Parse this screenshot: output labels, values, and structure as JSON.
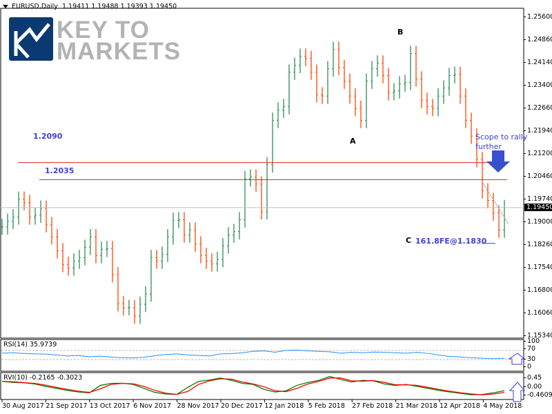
{
  "header": {
    "symbol": "EURUSD,Daily",
    "ohlc_text": "1.19411 1.19488 1.19393 1.19450"
  },
  "logo": {
    "line1": "KEY TO",
    "line2": "MARKETS",
    "color": "#0b3a72"
  },
  "colors": {
    "up": "#2e8b57",
    "down": "#ff4500",
    "level": "#dd2222",
    "annotation": "#4040d8",
    "rsi": "#1e90ff",
    "rvi_main": "#008000",
    "rvi_signal": "#ff0000"
  },
  "chart_data": [
    {
      "type": "bar",
      "title": "EURUSD,Daily",
      "ylim": [
        1.1534,
        1.256
      ],
      "y_ticks": [
        "1.25600",
        "1.24860",
        "1.24140",
        "1.23400",
        "1.22660",
        "1.21940",
        "1.21200",
        "1.20460",
        "1.19740",
        "1.19000",
        "1.18260",
        "1.17540",
        "1.16800",
        "1.16060",
        "1.15340"
      ],
      "x_ticks": [
        "30 Aug 2017",
        "21 Sep 2017",
        "13 Oct 2017",
        "6 Nov 2017",
        "28 Nov 2017",
        "20 Dec 2017",
        "12 Jan 2018",
        "5 Feb 2018",
        "27 Feb 2018",
        "21 Mar 2018",
        "12 Apr 2018",
        "4 May 2018"
      ],
      "closes": [
        1.1883,
        1.1901,
        1.1915,
        1.1972,
        1.1961,
        1.1915,
        1.1921,
        1.1943,
        1.189,
        1.1851,
        1.1806,
        1.1762,
        1.1751,
        1.1773,
        1.1784,
        1.1817,
        1.1851,
        1.1791,
        1.1811,
        1.1813,
        1.1729,
        1.1636,
        1.1623,
        1.1623,
        1.1596,
        1.1634,
        1.1667,
        1.1784,
        1.1773,
        1.1795,
        1.1851,
        1.1904,
        1.1906,
        1.1857,
        1.1873,
        1.1828,
        1.1791,
        1.1773,
        1.1764,
        1.1778,
        1.1822,
        1.1857,
        1.1868,
        1.1906,
        1.2038,
        1.2043,
        1.2021,
        1.1932,
        1.2083,
        1.2226,
        1.2259,
        1.227,
        1.2381,
        1.2403,
        1.2432,
        1.2425,
        1.2381,
        1.2308,
        1.2304,
        1.2392,
        1.2454,
        1.2396,
        1.2352,
        1.2304,
        1.2264,
        1.2226,
        1.2352,
        1.2392,
        1.241,
        1.237,
        1.2315,
        1.2321,
        1.2343,
        1.2348,
        1.2441,
        1.2359,
        1.229,
        1.227,
        1.2264,
        1.2304,
        1.233,
        1.237,
        1.2374,
        1.2304,
        1.2226,
        1.2175,
        1.21,
        1.1999,
        1.1968,
        1.1928,
        1.1873,
        1.1945
      ],
      "last_price": "1.19450",
      "levels": [
        {
          "label": "1.2090",
          "value": 1.209
        },
        {
          "label": "1.2035",
          "value": 1.2035
        }
      ],
      "annotations": {
        "A": "A",
        "B": "B",
        "C": "C",
        "fe_target": "161.8FE@1.1830",
        "fe_value": 1.183,
        "scope_line1": "Scope to rally",
        "scope_line2": "further"
      }
    },
    {
      "type": "line",
      "title": "RSI(14) 35.9739",
      "ylim": [
        0,
        100
      ],
      "y_ticks": [
        "100",
        "70",
        "30",
        "0"
      ],
      "levels": [
        70,
        30
      ],
      "values": [
        58,
        60,
        57,
        55,
        54,
        50,
        46,
        48,
        42,
        45,
        41,
        38,
        37,
        40,
        47,
        52,
        55,
        50,
        48,
        46,
        55,
        56,
        60,
        66,
        68,
        62,
        70,
        72,
        68,
        66,
        64,
        58,
        62,
        60,
        63,
        62,
        60,
        58,
        62,
        57,
        50,
        44,
        41,
        38,
        36,
        34,
        36
      ]
    },
    {
      "type": "line",
      "title": "RVI(10) -0.2165 -0.3023",
      "ylim": [
        -0.5,
        0.5
      ],
      "y_ticks": [
        "0.45",
        "0.00",
        "-0.4609"
      ],
      "series": [
        {
          "values": [
            0.25,
            0.2,
            0.18,
            0.12,
            0.0,
            -0.1,
            -0.2,
            -0.28,
            -0.32,
            0.05,
            0.15,
            0.16,
            0.1,
            -0.1,
            -0.3,
            -0.38,
            -0.4,
            -0.05,
            0.25,
            0.32,
            0.42,
            0.3,
            0.15,
            0.1,
            -0.15,
            -0.28,
            -0.22,
            0.05,
            0.2,
            0.3,
            0.5,
            0.35,
            0.22,
            0.3,
            0.28,
            0.12,
            0.05,
            0.1,
            0.0,
            -0.1,
            -0.2,
            -0.28,
            -0.35,
            -0.42,
            -0.4,
            -0.32,
            -0.2165
          ]
        },
        {
          "values": [
            0.25,
            0.23,
            0.19,
            0.15,
            0.06,
            -0.05,
            -0.15,
            -0.24,
            -0.3,
            -0.12,
            0.1,
            0.15,
            0.13,
            0.0,
            -0.2,
            -0.34,
            -0.4,
            -0.25,
            0.1,
            0.28,
            0.38,
            0.36,
            0.22,
            0.12,
            -0.02,
            -0.22,
            -0.26,
            -0.1,
            0.12,
            0.25,
            0.42,
            0.42,
            0.28,
            0.26,
            0.29,
            0.2,
            0.08,
            0.08,
            0.05,
            -0.05,
            -0.15,
            -0.24,
            -0.32,
            -0.38,
            -0.42,
            -0.38,
            -0.3023
          ]
        }
      ]
    }
  ]
}
